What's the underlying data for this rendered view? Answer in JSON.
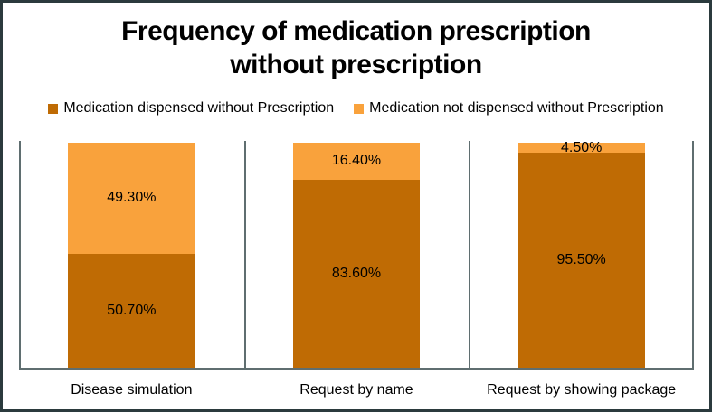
{
  "window": {
    "background": "#ffffff",
    "border_color": "#2b3a3d",
    "axis_line_color": "#5f6e70",
    "text_color": "#000000"
  },
  "title": {
    "lines": [
      "Frequency of medication prescription",
      "without prescription"
    ]
  },
  "legend": {
    "items": [
      {
        "label": "Medication dispensed without Prescription",
        "color": "#bf6b04"
      },
      {
        "label": "Medication not dispensed without Prescription",
        "color": "#f9a23c"
      }
    ]
  },
  "chart_data": {
    "type": "bar",
    "subtype": "stacked-100-percent",
    "title": "Frequency of medication prescription without prescription",
    "categories": [
      "Disease simulation",
      "Request by name",
      "Request by showing package"
    ],
    "series": [
      {
        "name": "Medication dispensed without Prescription",
        "color": "#bf6b04",
        "values": [
          50.7,
          83.6,
          95.5
        ],
        "labels": [
          "50.70%",
          "83.60%",
          "95.50%"
        ]
      },
      {
        "name": "Medication not dispensed without Prescription",
        "color": "#f9a23c",
        "values": [
          49.3,
          16.4,
          4.5
        ],
        "labels": [
          "49.30%",
          "16.40%",
          "4.50%"
        ]
      }
    ],
    "xlabel": "",
    "ylabel": "",
    "ylim": [
      0,
      100
    ],
    "value_axis_visible": false,
    "grid": "vertical-category-separators",
    "legend_position": "top",
    "data_label_color": "#000000"
  }
}
